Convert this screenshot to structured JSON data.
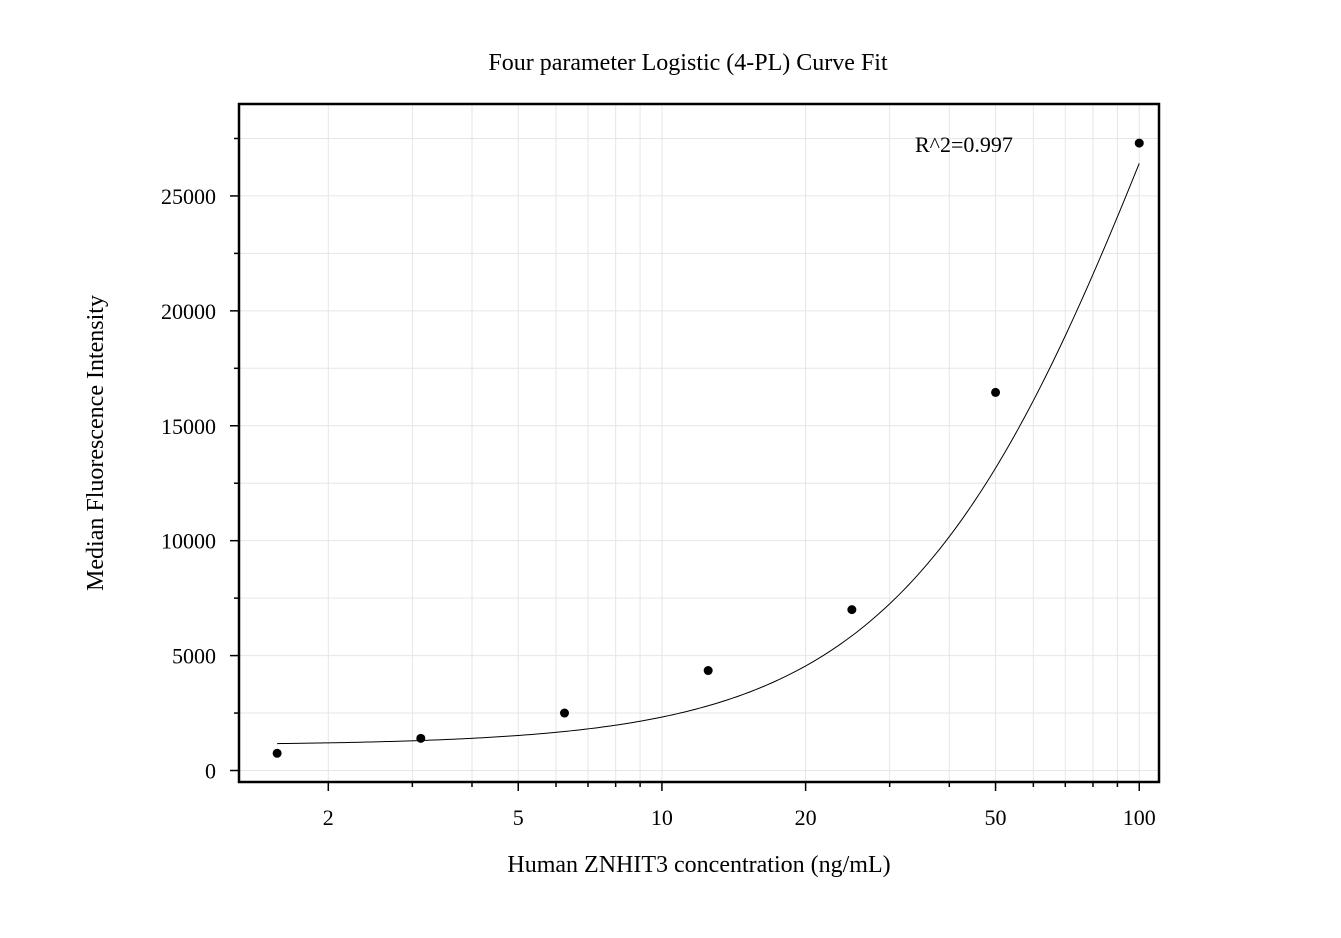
{
  "chart_data": {
    "type": "scatter",
    "title": "Four parameter Logistic (4-PL) Curve Fit",
    "xlabel": "Human ZNHIT3 concentration (ng/mL)",
    "ylabel": "Median Fluorescence Intensity",
    "xscale": "log",
    "yscale": "linear",
    "xlim": [
      1.3,
      110
    ],
    "ylim": [
      -500,
      29000
    ],
    "grid": true,
    "x_ticks": [
      2,
      5,
      10,
      20,
      50,
      100
    ],
    "x_tick_labels": [
      "2",
      "5",
      "10",
      "20",
      "50",
      "100"
    ],
    "y_ticks": [
      0,
      5000,
      10000,
      15000,
      20000,
      25000
    ],
    "y_tick_labels": [
      "0",
      "5000",
      "10000",
      "15000",
      "20000",
      "25000"
    ],
    "annotation": "R^2=0.997",
    "series": [
      {
        "type": "scatter",
        "x": [
          1.5625,
          3.125,
          6.25,
          12.5,
          25,
          50,
          100
        ],
        "y": [
          750,
          1400,
          2500,
          4350,
          7000,
          16450,
          27300
        ]
      }
    ],
    "fit_curve": {
      "type": "line",
      "model": "4PL",
      "params": {
        "A": 1100,
        "B": 1.55,
        "C": 120,
        "D": 60000
      },
      "x_range": [
        1.5625,
        100
      ]
    },
    "colors": {
      "points": "#000000",
      "curve": "#000000",
      "grid": "#e6e6e6",
      "axes": "#000000"
    }
  }
}
